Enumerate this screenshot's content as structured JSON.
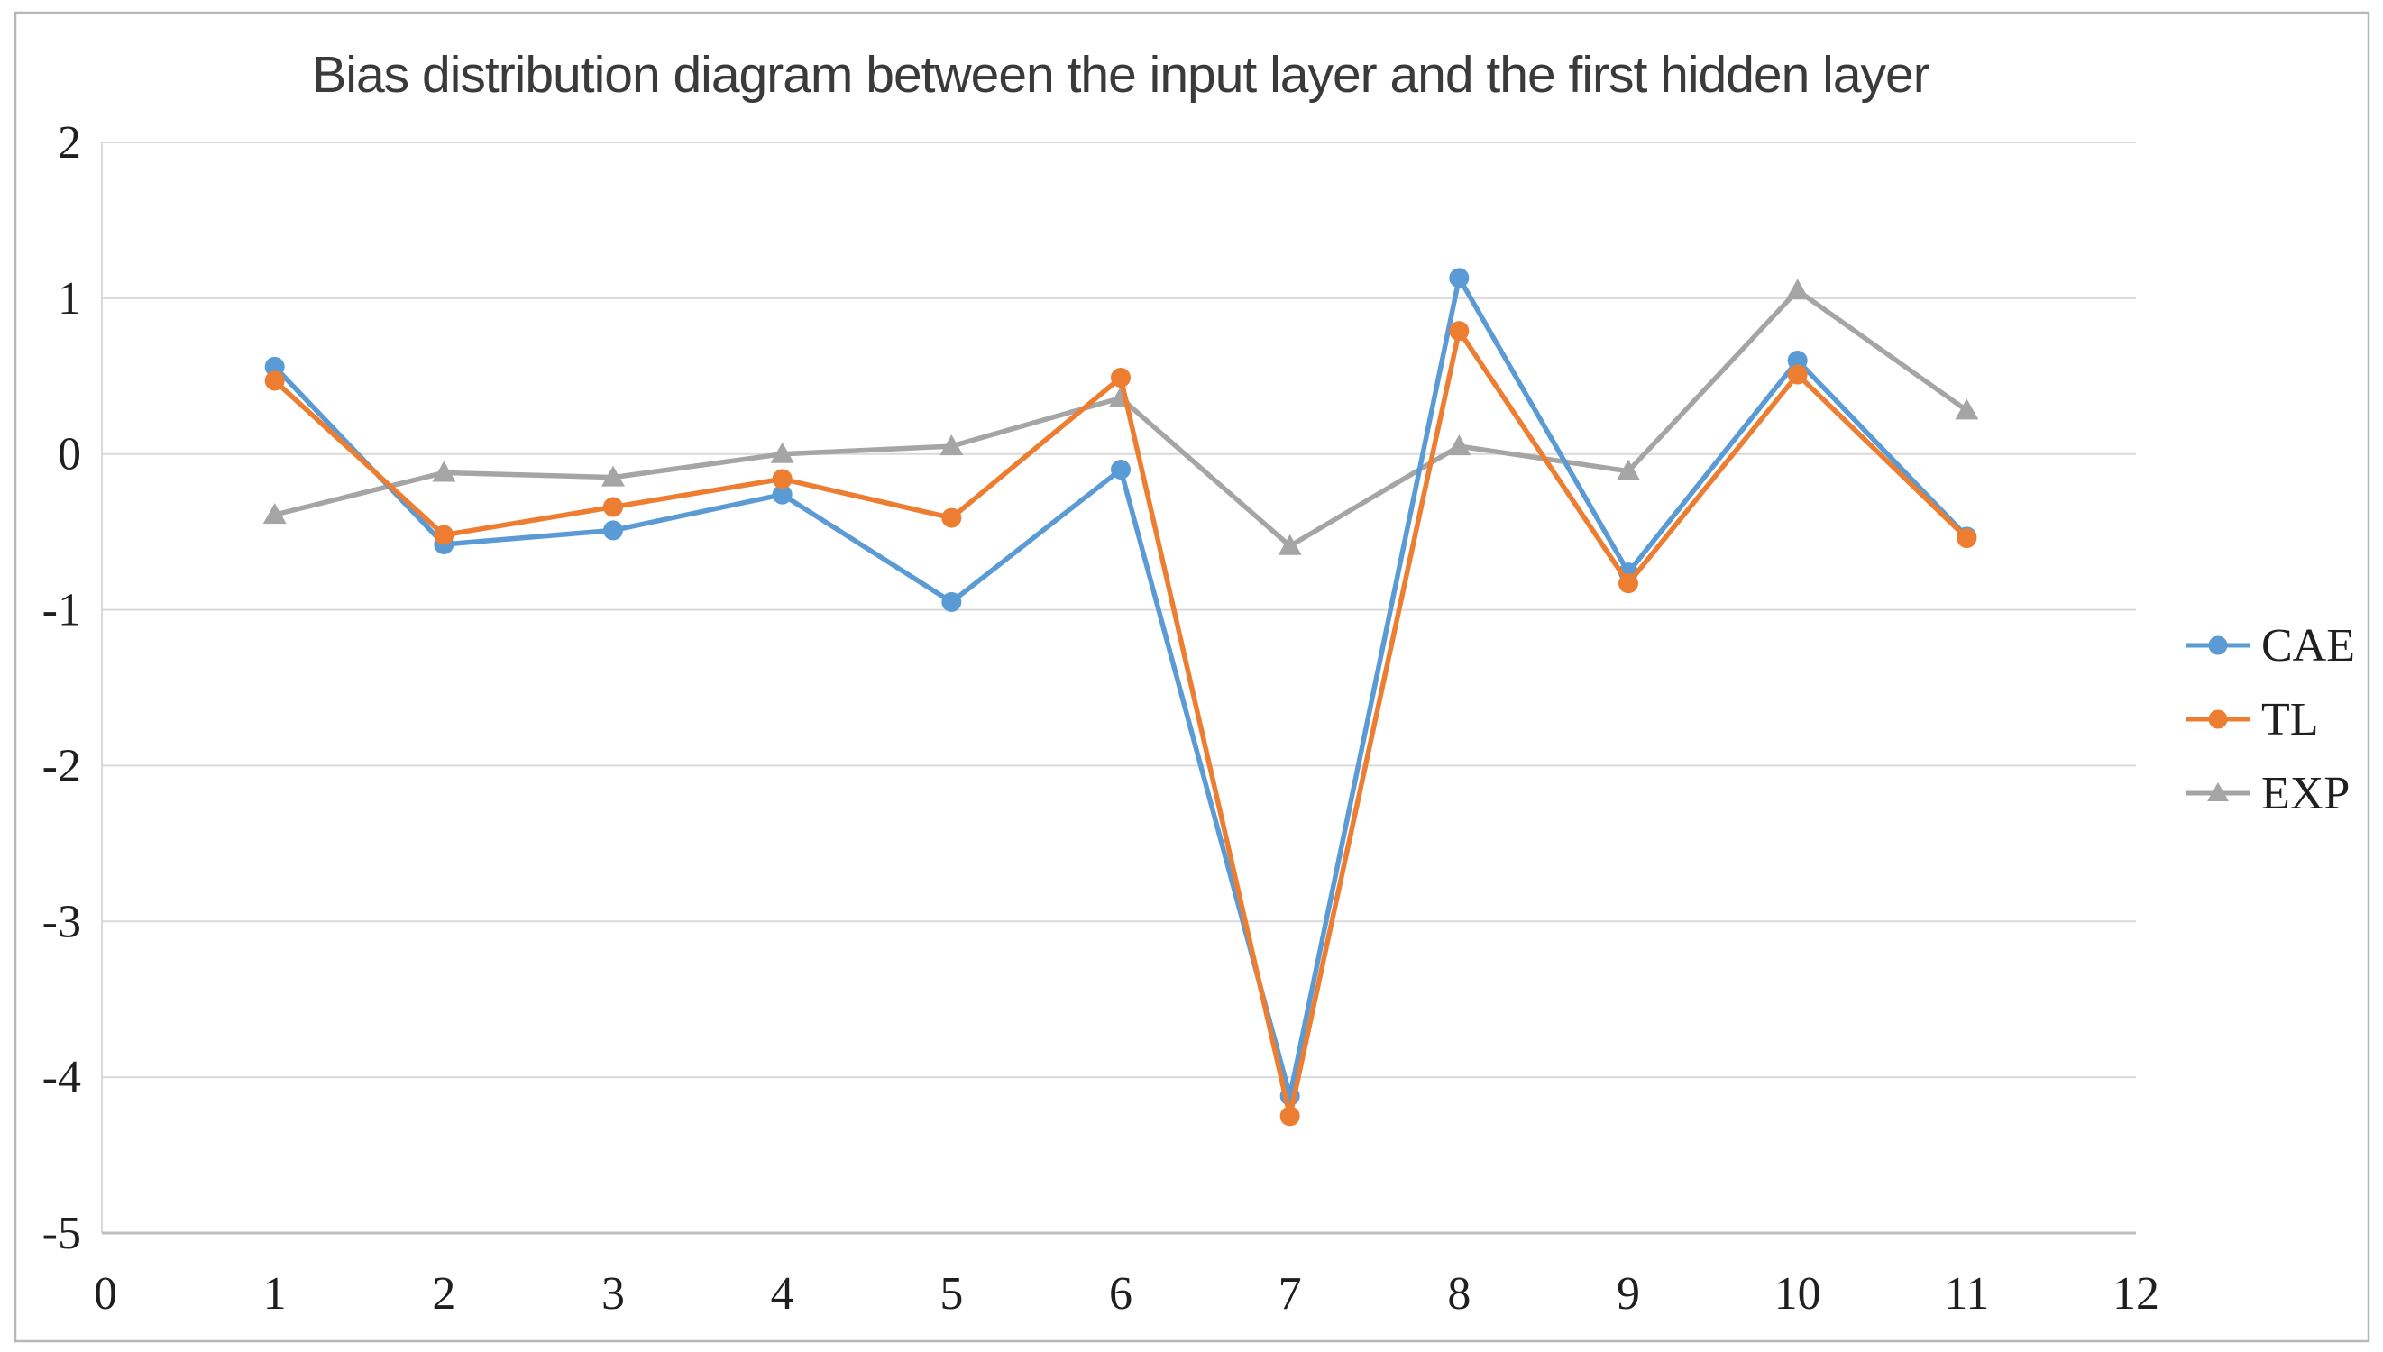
{
  "figure": {
    "border_color": "#b7b7b7",
    "background": "#ffffff"
  },
  "chart_data": {
    "type": "line",
    "title": "Bias distribution diagram between the input layer and the first hidden layer",
    "xlabel": "",
    "ylabel": "",
    "x": [
      1,
      2,
      3,
      4,
      5,
      6,
      7,
      8,
      9,
      10,
      11
    ],
    "series": [
      {
        "name": "CAE",
        "color": "#5B9BD5",
        "marker": "circle",
        "values": [
          0.56,
          -0.58,
          -0.49,
          -0.26,
          -0.95,
          -0.1,
          -4.12,
          1.13,
          -0.76,
          0.6,
          -0.53
        ]
      },
      {
        "name": "TL",
        "color": "#ED7D31",
        "marker": "circle",
        "values": [
          0.47,
          -0.52,
          -0.34,
          -0.16,
          -0.41,
          0.49,
          -4.25,
          0.79,
          -0.83,
          0.51,
          -0.54
        ]
      },
      {
        "name": "EXP",
        "color": "#A5A5A5",
        "marker": "triangle",
        "values": [
          -0.39,
          -0.12,
          -0.15,
          0.0,
          0.05,
          0.36,
          -0.59,
          0.05,
          -0.11,
          1.05,
          0.28
        ]
      }
    ],
    "xlim": [
      0,
      12
    ],
    "ylim": [
      -5,
      2
    ],
    "x_ticks": [
      0,
      1,
      2,
      3,
      4,
      5,
      6,
      7,
      8,
      9,
      10,
      11,
      12
    ],
    "y_ticks": [
      2,
      1,
      0,
      -1,
      -2,
      -3,
      -4,
      -5
    ],
    "grid": true,
    "gridline_color": "#d9d9d9",
    "axis_line_color": "#bfbfbf",
    "legend_position": "right-middle"
  }
}
